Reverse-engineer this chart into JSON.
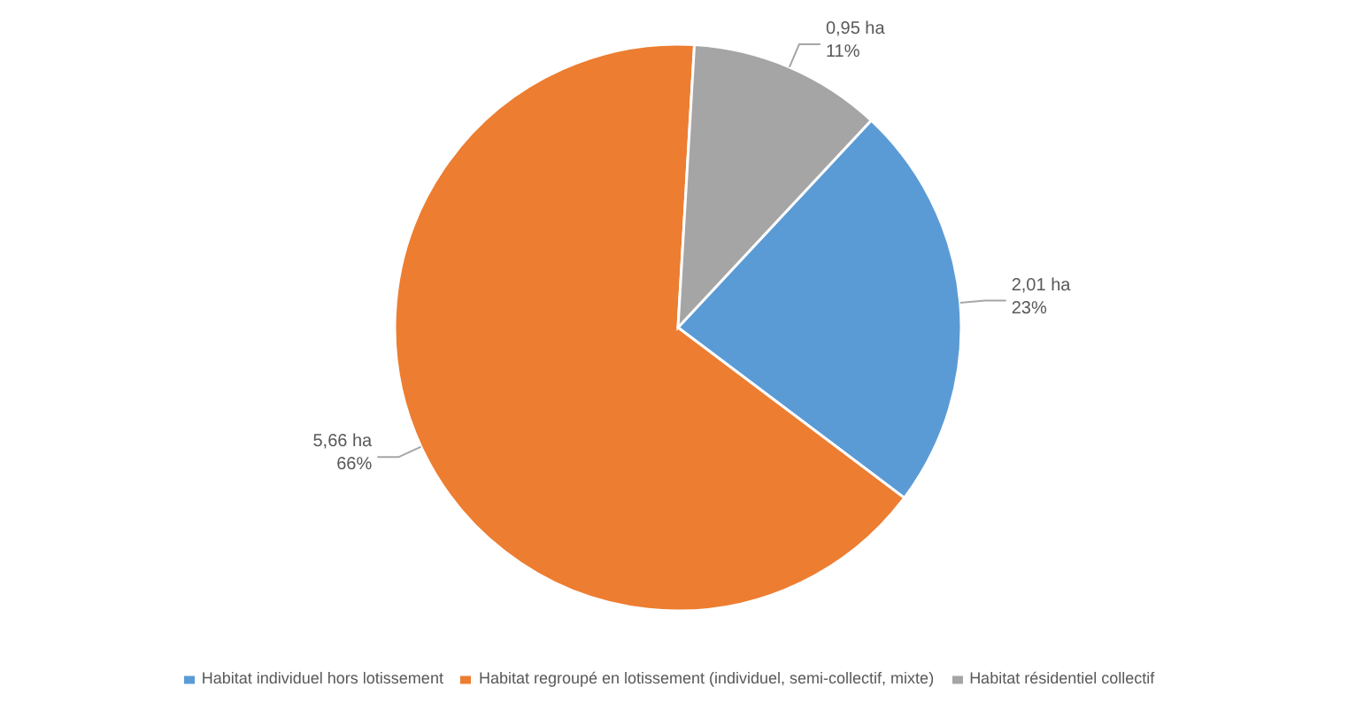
{
  "chart_data": {
    "type": "pie",
    "categories": [
      "Habitat individuel hors lotissement",
      "Habitat regroupé en lotissement (individuel, semi-collectif, mixte)",
      "Habitat résidentiel collectif"
    ],
    "values": [
      2.01,
      5.66,
      0.95
    ],
    "colors": [
      "#5b9bd5",
      "#ed7d31",
      "#a5a5a5"
    ],
    "value_labels": [
      "2,01 ha\n23%",
      "5,66 ha\n66%",
      "0,95 ha\n11%"
    ],
    "legend": "bottom"
  }
}
